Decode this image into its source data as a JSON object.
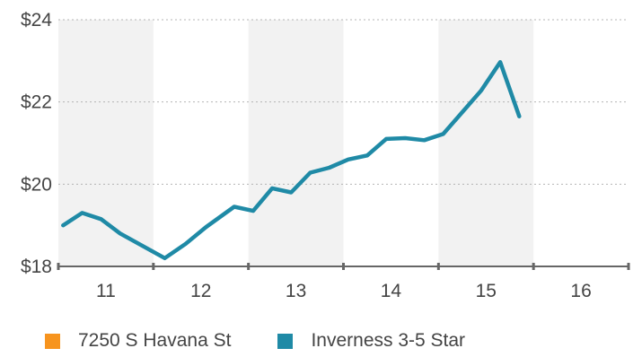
{
  "chart_data": {
    "type": "line",
    "x": [
      10.55,
      10.75,
      10.95,
      11.15,
      11.62,
      11.84,
      12.05,
      12.35,
      12.55,
      12.75,
      12.95,
      13.15,
      13.35,
      13.55,
      13.75,
      13.95,
      14.15,
      14.35,
      14.55,
      14.75,
      14.95,
      15.15,
      15.35,
      15.55,
      15.85,
      16.05
    ],
    "series": [
      {
        "name": "Inverness 3-5 Star",
        "color": "#1f8aa6",
        "values": [
          19.0,
          19.3,
          19.15,
          18.8,
          18.2,
          18.55,
          18.95,
          19.45,
          19.35,
          19.9,
          19.8,
          20.28,
          20.4,
          20.6,
          20.7,
          21.1,
          21.12,
          21.07,
          21.22,
          21.75,
          22.28,
          22.97,
          21.65,
          null,
          null,
          null
        ]
      }
    ],
    "xticks": [
      "11",
      "12",
      "13",
      "14",
      "15",
      "16"
    ],
    "yticks": [
      "$18",
      "$20",
      "$22",
      "$24"
    ],
    "ylim": [
      18,
      24
    ],
    "xlim": [
      10.5,
      16.5
    ],
    "grid": "horizontal dotted",
    "legend_position": "bottom"
  },
  "legend": [
    {
      "label": "7250 S Havana St",
      "color": "#f7941e"
    },
    {
      "label": "Inverness 3-5 Star",
      "color": "#1f8aa6"
    }
  ]
}
